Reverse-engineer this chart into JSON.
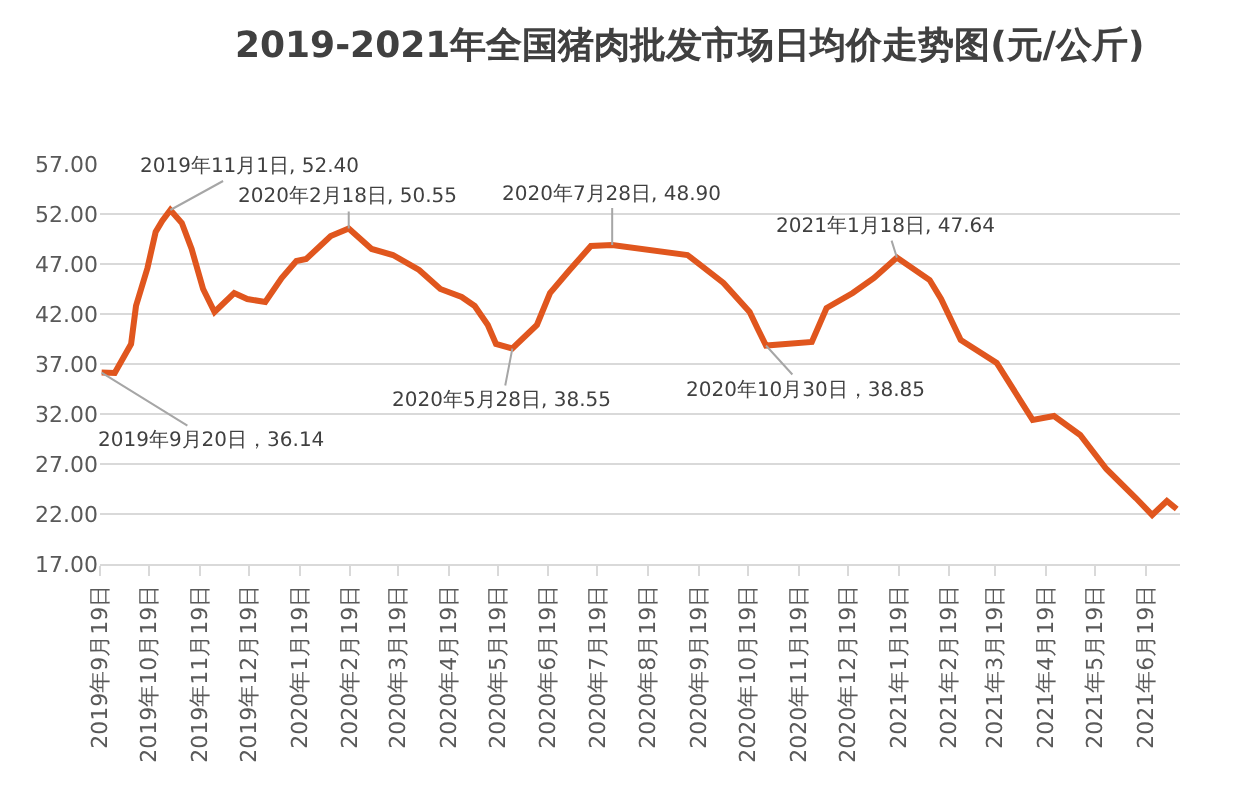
{
  "chart_data": {
    "type": "line",
    "title": "2019-2021年全国猪肉批发市场日均价走势图(元/公斤)",
    "x": [
      "2019-09-20",
      "2019-09-28",
      "2019-10-08",
      "2019-10-11",
      "2019-10-18",
      "2019-10-23",
      "2019-10-27",
      "2019-11-01",
      "2019-11-08",
      "2019-11-14",
      "2019-11-21",
      "2019-11-28",
      "2019-12-10",
      "2019-12-18",
      "2019-12-29",
      "2020-01-08",
      "2020-01-17",
      "2020-01-23",
      "2020-02-07",
      "2020-02-18",
      "2020-03-03",
      "2020-03-16",
      "2020-04-01",
      "2020-04-14",
      "2020-04-27",
      "2020-05-05",
      "2020-05-13",
      "2020-05-18",
      "2020-05-28",
      "2020-06-12",
      "2020-06-20",
      "2020-07-02",
      "2020-07-15",
      "2020-07-28",
      "2020-09-12",
      "2020-10-04",
      "2020-10-20",
      "2020-10-25",
      "2020-10-30",
      "2020-11-27",
      "2020-12-06",
      "2020-12-22",
      "2021-01-04",
      "2021-01-18",
      "2021-02-07",
      "2021-02-14",
      "2021-02-26",
      "2021-03-20",
      "2021-04-11",
      "2021-04-24",
      "2021-05-10",
      "2021-05-26",
      "2021-06-13",
      "2021-06-23",
      "2021-07-02",
      "2021-07-08"
    ],
    "series": [
      {
        "color": "#e0561e",
        "values": [
          36.14,
          36.1,
          39.0,
          42.8,
          46.6,
          50.2,
          51.3,
          52.4,
          51.1,
          48.5,
          44.5,
          42.2,
          44.1,
          43.5,
          43.2,
          45.6,
          47.3,
          47.5,
          49.8,
          50.55,
          48.5,
          47.9,
          46.4,
          44.5,
          43.7,
          42.8,
          40.9,
          39.0,
          38.55,
          40.9,
          44.1,
          46.4,
          48.8,
          48.9,
          47.9,
          45.1,
          42.2,
          40.5,
          38.85,
          39.2,
          42.6,
          44.1,
          45.6,
          47.64,
          45.4,
          43.5,
          39.4,
          37.1,
          31.4,
          31.8,
          29.9,
          26.5,
          23.6,
          21.9,
          23.3,
          22.5
        ]
      }
    ],
    "xlim": [
      "2019-09-19",
      "2021-07-10"
    ],
    "xticks": [
      {
        "value": "2019-09-19",
        "label": "2019年9月19日"
      },
      {
        "value": "2019-10-19",
        "label": "2019年10月19日"
      },
      {
        "value": "2019-11-19",
        "label": "2019年11月19日"
      },
      {
        "value": "2019-12-19",
        "label": "2019年12月19日"
      },
      {
        "value": "2020-01-19",
        "label": "2020年1月19日"
      },
      {
        "value": "2020-02-19",
        "label": "2020年2月19日"
      },
      {
        "value": "2020-03-19",
        "label": "2020年3月19日"
      },
      {
        "value": "2020-04-19",
        "label": "2020年4月19日"
      },
      {
        "value": "2020-05-19",
        "label": "2020年5月19日"
      },
      {
        "value": "2020-06-19",
        "label": "2020年6月19日"
      },
      {
        "value": "2020-07-19",
        "label": "2020年7月19日"
      },
      {
        "value": "2020-08-19",
        "label": "2020年8月19日"
      },
      {
        "value": "2020-09-19",
        "label": "2020年9月19日"
      },
      {
        "value": "2020-10-19",
        "label": "2020年10月19日"
      },
      {
        "value": "2020-11-19",
        "label": "2020年11月19日"
      },
      {
        "value": "2020-12-19",
        "label": "2020年12月19日"
      },
      {
        "value": "2021-01-19",
        "label": "2021年1月19日"
      },
      {
        "value": "2021-02-19",
        "label": "2021年2月19日"
      },
      {
        "value": "2021-03-19",
        "label": "2021年3月19日"
      },
      {
        "value": "2021-04-19",
        "label": "2021年4月19日"
      },
      {
        "value": "2021-05-19",
        "label": "2021年5月19日"
      },
      {
        "value": "2021-06-19",
        "label": "2021年6月19日"
      }
    ],
    "ylim": [
      17,
      57
    ],
    "yticks": [
      {
        "value": 17,
        "label": "17.00"
      },
      {
        "value": 22,
        "label": "22.00"
      },
      {
        "value": 27,
        "label": "27.00"
      },
      {
        "value": 32,
        "label": "32.00"
      },
      {
        "value": 37,
        "label": "37.00"
      },
      {
        "value": 42,
        "label": "42.00"
      },
      {
        "value": 47,
        "label": "47.00"
      },
      {
        "value": 52,
        "label": "52.00"
      },
      {
        "value": 57,
        "label": "57.00"
      }
    ],
    "grid": "y",
    "marker": "none",
    "line_style": "solid",
    "annotations": [
      {
        "text": "2019年9月20日，36.14",
        "x": "2019-09-20",
        "y": 36.14
      },
      {
        "text": "2019年11月1日, 52.40",
        "x": "2019-11-01",
        "y": 52.4
      },
      {
        "text": "2020年2月18日, 50.55",
        "x": "2020-02-18",
        "y": 50.55
      },
      {
        "text": "2020年5月28日, 38.55",
        "x": "2020-05-28",
        "y": 38.55
      },
      {
        "text": "2020年7月28日, 48.90",
        "x": "2020-07-28",
        "y": 48.9
      },
      {
        "text": "2020年10月30日，38.85",
        "x": "2020-10-30",
        "y": 38.85
      },
      {
        "text": "2021年1月18日, 47.64",
        "x": "2021-01-18",
        "y": 47.64
      }
    ]
  }
}
